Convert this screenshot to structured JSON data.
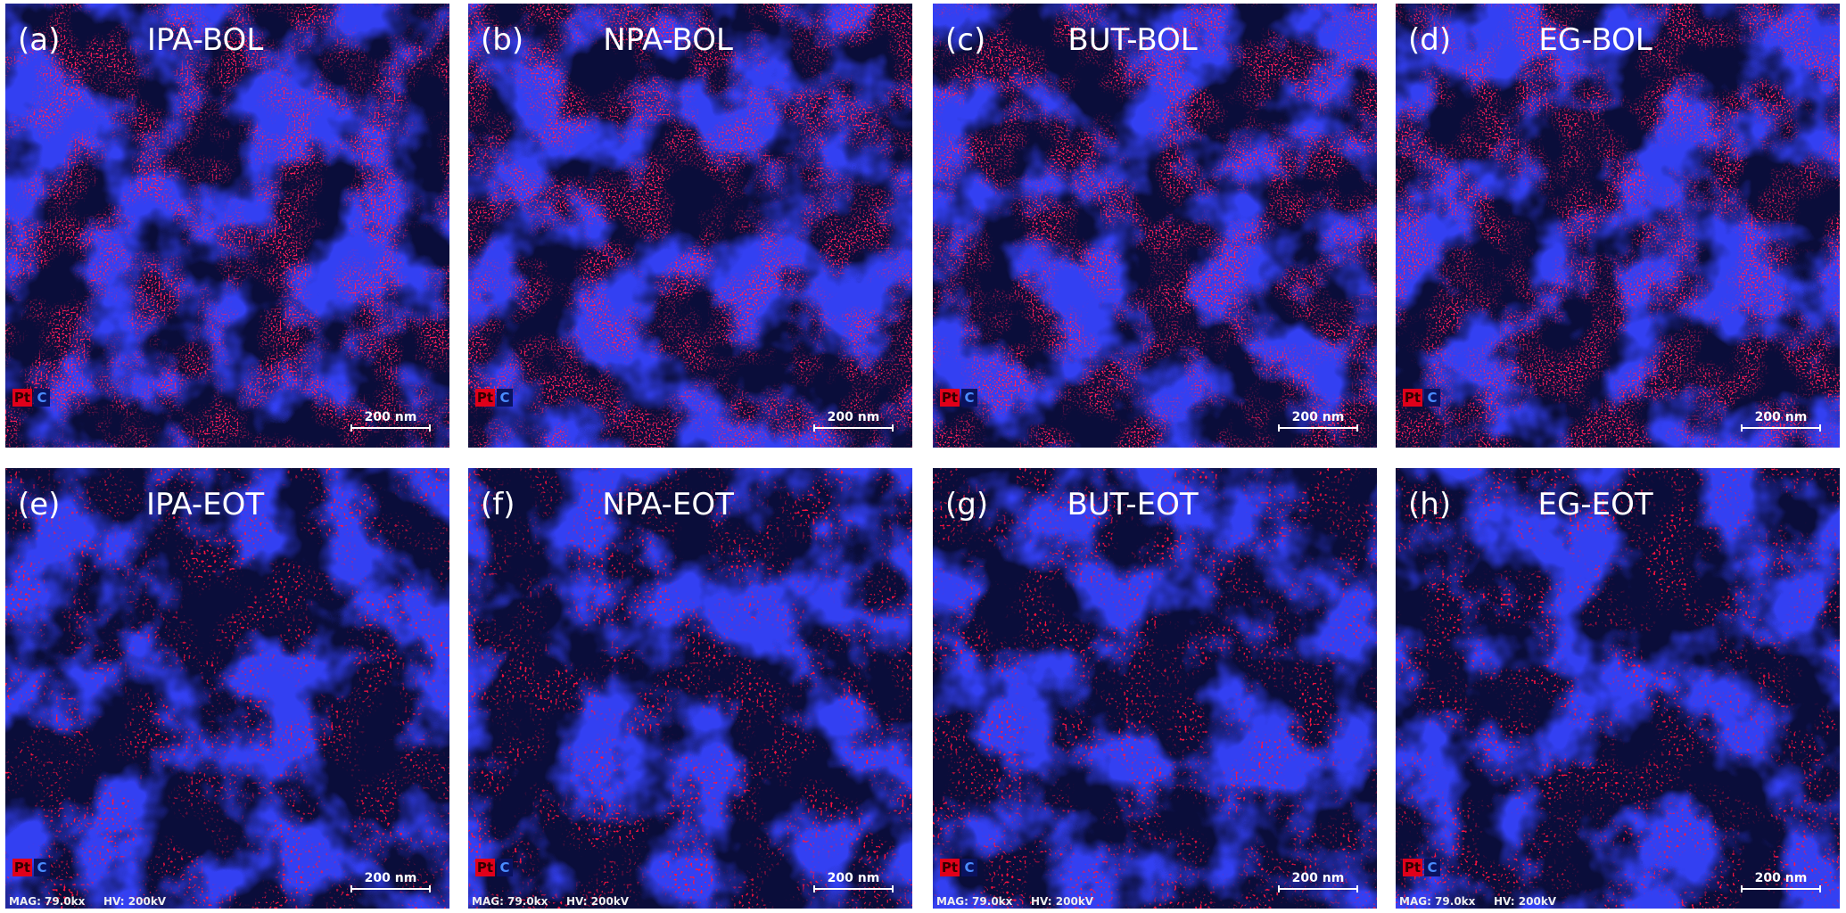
{
  "panels": [
    {
      "label": "(a)",
      "title": "IPA-BOL",
      "legend": [
        "Pt",
        "C"
      ],
      "scale_bar": "200 nm"
    },
    {
      "label": "(b)",
      "title": "NPA-BOL",
      "legend": [
        "Pt",
        "C"
      ],
      "scale_bar": "200 nm"
    },
    {
      "label": "(c)",
      "title": "BUT-BOL",
      "legend": [
        "Pt",
        "C"
      ],
      "scale_bar": "200 nm"
    },
    {
      "label": "(d)",
      "title": "EG-BOL",
      "legend": [
        "Pt",
        "C"
      ],
      "scale_bar": "200 nm"
    },
    {
      "label": "(e)",
      "title": "IPA-EOT",
      "legend": [
        "Pt",
        "C"
      ],
      "scale_bar": "200 nm",
      "info": [
        "MAG: 79.0kx",
        "HV: 200kV"
      ]
    },
    {
      "label": "(f)",
      "title": "NPA-EOT",
      "legend": [
        "Pt",
        "C"
      ],
      "scale_bar": "200 nm",
      "info": [
        "MAG: 79.0kx",
        "HV: 200kV"
      ]
    },
    {
      "label": "(g)",
      "title": "BUT-EOT",
      "legend": [
        "Pt",
        "C"
      ],
      "scale_bar": "200 nm",
      "info": [
        "MAG: 79.0kx",
        "HV: 200kV"
      ]
    },
    {
      "label": "(h)",
      "title": "EG-EOT",
      "legend": [
        "Pt",
        "C"
      ],
      "scale_bar": "200 nm",
      "info": [
        "MAG: 79.0kx",
        "HV: 200kV"
      ]
    }
  ]
}
